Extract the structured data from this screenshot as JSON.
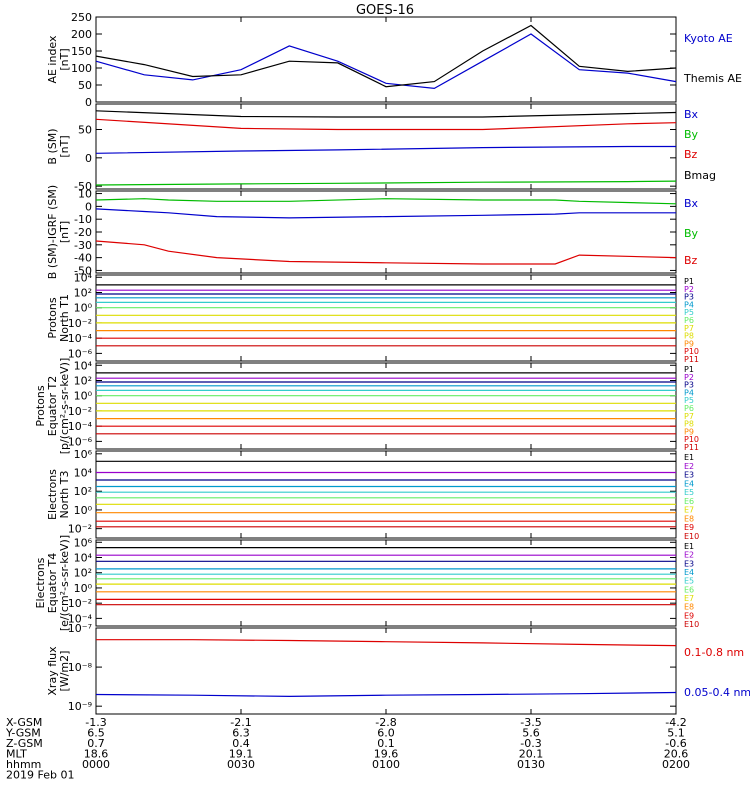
{
  "figure": {
    "title": "GOES-16",
    "footer": {
      "rows": [
        {
          "label": "X-GSM",
          "values": [
            "-1.3",
            "-2.1",
            "-2.8",
            "-3.5",
            "-4.2"
          ]
        },
        {
          "label": "Y-GSM",
          "values": [
            "6.5",
            "6.3",
            "6.0",
            "5.6",
            "5.1"
          ]
        },
        {
          "label": "Z-GSM",
          "values": [
            "0.7",
            "0.4",
            "0.1",
            "-0.3",
            "-0.6"
          ]
        },
        {
          "label": "MLT",
          "values": [
            "18.6",
            "19.1",
            "19.6",
            "20.1",
            "20.6"
          ]
        },
        {
          "label": "hhmm",
          "values": [
            "0000",
            "0030",
            "0100",
            "0130",
            "0200"
          ]
        }
      ],
      "date": "2019 Feb 01"
    }
  },
  "colors": {
    "black": "#000000",
    "blue": "#0000cc",
    "green": "#00bb00",
    "red": "#dd0000",
    "navy": "#000088",
    "purple": "#9900cc",
    "teal": "#0099cc",
    "cyan": "#33cccc",
    "ltgreen": "#66ee66",
    "yellow": "#dddd00",
    "orange": "#ff8800",
    "dkred": "#cc0000"
  },
  "chart_data": [
    {
      "id": "ae",
      "type": "line",
      "ylabel": [
        "AE index",
        "[nT]"
      ],
      "yscale": "linear",
      "ylim": [
        0,
        250
      ],
      "yticks": [
        0,
        50,
        100,
        150,
        200,
        250
      ],
      "ytick_labels": [
        "0",
        "50",
        "100",
        "150",
        "200",
        "250"
      ],
      "x_minutes": [
        0,
        10,
        20,
        30,
        40,
        50,
        60,
        70,
        80,
        90,
        100,
        110,
        120
      ],
      "series": [
        {
          "name": "Kyoto AE",
          "color": "#0000cc",
          "values": [
            120,
            80,
            65,
            95,
            165,
            120,
            55,
            40,
            120,
            200,
            95,
            85,
            60
          ]
        },
        {
          "name": "Themis AE",
          "color": "#000000",
          "values": [
            135,
            110,
            75,
            80,
            120,
            115,
            45,
            60,
            150,
            225,
            105,
            90,
            100
          ]
        }
      ]
    },
    {
      "id": "bsm",
      "type": "line",
      "ylabel": [
        "B (SM)",
        "[nT]"
      ],
      "yscale": "linear",
      "ylim": [
        -55,
        95
      ],
      "yticks": [
        -50,
        0,
        50
      ],
      "ytick_labels": [
        "-50",
        "0",
        "50"
      ],
      "x_minutes": [
        0,
        30,
        50,
        80,
        110,
        120
      ],
      "series": [
        {
          "name": "Bx",
          "color": "#0000cc",
          "values": [
            8,
            12,
            14,
            18,
            20,
            20
          ]
        },
        {
          "name": "By",
          "color": "#00bb00",
          "values": [
            -48,
            -46,
            -45,
            -43,
            -42,
            -41
          ]
        },
        {
          "name": "Bz",
          "color": "#dd0000",
          "values": [
            68,
            52,
            50,
            50,
            60,
            62
          ]
        },
        {
          "name": "Bmag",
          "color": "#000000",
          "values": [
            83,
            73,
            72,
            72,
            78,
            80
          ]
        }
      ]
    },
    {
      "id": "bigrf",
      "type": "line",
      "ylabel": [
        "B (SM)-IGRF (SM)",
        "[nT]"
      ],
      "yscale": "linear",
      "ylim": [
        -52,
        12
      ],
      "yticks": [
        -50,
        -40,
        -30,
        -20,
        -10,
        0,
        10
      ],
      "ytick_labels": [
        "-50",
        "-40",
        "-30",
        "-20",
        "-10",
        "0",
        "10"
      ],
      "x_minutes": [
        0,
        10,
        15,
        25,
        40,
        60,
        80,
        95,
        100,
        120
      ],
      "series": [
        {
          "name": "Bx",
          "color": "#0000cc",
          "values": [
            -2,
            -4,
            -5,
            -8,
            -9,
            -8,
            -7,
            -6,
            -5,
            -5
          ]
        },
        {
          "name": "By",
          "color": "#00bb00",
          "values": [
            5,
            6,
            5,
            4,
            4,
            6,
            5,
            5,
            4,
            2
          ]
        },
        {
          "name": "Bz",
          "color": "#dd0000",
          "values": [
            -27,
            -30,
            -35,
            -40,
            -43,
            -44,
            -45,
            -45,
            -38,
            -40
          ]
        }
      ]
    },
    {
      "id": "p_north",
      "type": "line",
      "ylabel": [
        "Protons",
        "North T1"
      ],
      "yscale": "log",
      "ylim": [
        -7,
        4.3
      ],
      "yticks": [
        -6,
        -4,
        -2,
        0,
        2,
        4
      ],
      "ytick_labels": [
        "10⁻⁶",
        "10⁻⁴",
        "10⁻²",
        "10⁰",
        "10²",
        "10⁴"
      ],
      "x_minutes": [
        0,
        120
      ],
      "series": [
        {
          "name": "P1",
          "color": "#000000",
          "values": [
            3.0,
            3.0
          ]
        },
        {
          "name": "P2",
          "color": "#9900cc",
          "values": [
            2.3,
            2.3
          ]
        },
        {
          "name": "P3",
          "color": "#000088",
          "values": [
            1.8,
            1.8
          ]
        },
        {
          "name": "P4",
          "color": "#0099cc",
          "values": [
            1.3,
            1.3
          ]
        },
        {
          "name": "P5",
          "color": "#33cccc",
          "values": [
            0.7,
            0.7
          ]
        },
        {
          "name": "P6",
          "color": "#66ee66",
          "values": [
            0.0,
            0.0
          ]
        },
        {
          "name": "P7",
          "color": "#dddd00",
          "values": [
            -1.0,
            -1.0
          ]
        },
        {
          "name": "P8",
          "color": "#dddd00",
          "values": [
            -2.0,
            -2.0
          ]
        },
        {
          "name": "P9",
          "color": "#ff8800",
          "values": [
            -3.0,
            -3.0
          ]
        },
        {
          "name": "P10",
          "color": "#dd0000",
          "values": [
            -4.0,
            -4.0
          ]
        },
        {
          "name": "P11",
          "color": "#cc0000",
          "values": [
            -5.0,
            -5.0
          ]
        }
      ]
    },
    {
      "id": "p_equator",
      "type": "line",
      "ylabel": [
        "Protons",
        "Equator T2",
        "[p/(cm²-s-sr-keV)]"
      ],
      "yscale": "log",
      "ylim": [
        -7,
        4.3
      ],
      "yticks": [
        -6,
        -4,
        -2,
        0,
        2,
        4
      ],
      "ytick_labels": [
        "10⁻⁶",
        "10⁻⁴",
        "10⁻²",
        "10⁰",
        "10²",
        "10⁴"
      ],
      "x_minutes": [
        0,
        120
      ],
      "series": [
        {
          "name": "P1",
          "color": "#000000",
          "values": [
            3.0,
            3.0
          ]
        },
        {
          "name": "P2",
          "color": "#9900cc",
          "values": [
            2.3,
            2.3
          ]
        },
        {
          "name": "P3",
          "color": "#000088",
          "values": [
            1.8,
            1.8
          ]
        },
        {
          "name": "P4",
          "color": "#0099cc",
          "values": [
            1.3,
            1.3
          ]
        },
        {
          "name": "P5",
          "color": "#33cccc",
          "values": [
            0.7,
            0.7
          ]
        },
        {
          "name": "P6",
          "color": "#66ee66",
          "values": [
            0.0,
            0.0
          ]
        },
        {
          "name": "P7",
          "color": "#dddd00",
          "values": [
            -1.0,
            -1.0
          ]
        },
        {
          "name": "P8",
          "color": "#dddd00",
          "values": [
            -2.0,
            -2.0
          ]
        },
        {
          "name": "P9",
          "color": "#ff8800",
          "values": [
            -3.0,
            -3.0
          ]
        },
        {
          "name": "P10",
          "color": "#dd0000",
          "values": [
            -4.0,
            -4.0
          ]
        },
        {
          "name": "P11",
          "color": "#cc0000",
          "values": [
            -5.0,
            -5.0
          ]
        }
      ]
    },
    {
      "id": "e_north",
      "type": "line",
      "ylabel": [
        "Electrons",
        "North T3"
      ],
      "yscale": "log",
      "ylim": [
        -3,
        6.3
      ],
      "yticks": [
        -2,
        0,
        2,
        4,
        6
      ],
      "ytick_labels": [
        "10⁻²",
        "10⁰",
        "10²",
        "10⁴",
        "10⁶"
      ],
      "x_minutes": [
        0,
        120
      ],
      "series": [
        {
          "name": "E1",
          "color": "#000000",
          "values": [
            5.2,
            5.2
          ]
        },
        {
          "name": "E2",
          "color": "#9900cc",
          "values": [
            4.0,
            4.0
          ]
        },
        {
          "name": "E3",
          "color": "#000088",
          "values": [
            3.2,
            3.2
          ]
        },
        {
          "name": "E4",
          "color": "#0099cc",
          "values": [
            2.5,
            2.5
          ]
        },
        {
          "name": "E5",
          "color": "#33cccc",
          "values": [
            1.9,
            1.9
          ]
        },
        {
          "name": "E6",
          "color": "#66ee66",
          "values": [
            1.3,
            1.3
          ]
        },
        {
          "name": "E7",
          "color": "#dddd00",
          "values": [
            0.6,
            0.6
          ]
        },
        {
          "name": "E8",
          "color": "#ff8800",
          "values": [
            -0.3,
            -0.3
          ]
        },
        {
          "name": "E9",
          "color": "#dd0000",
          "values": [
            -1.2,
            -1.2
          ]
        },
        {
          "name": "E10",
          "color": "#cc0000",
          "values": [
            -1.8,
            -1.8
          ]
        }
      ]
    },
    {
      "id": "e_equator",
      "type": "line",
      "ylabel": [
        "Electrons",
        "Equator T4",
        "[e/(cm²-s-sr-keV)]"
      ],
      "yscale": "log",
      "ylim": [
        -5,
        6.3
      ],
      "yticks": [
        -4,
        -2,
        0,
        2,
        4,
        6
      ],
      "ytick_labels": [
        "10⁻⁴",
        "10⁻²",
        "10⁰",
        "10²",
        "10⁴",
        "10⁶"
      ],
      "x_minutes": [
        0,
        120
      ],
      "series": [
        {
          "name": "E1",
          "color": "#000000",
          "values": [
            5.3,
            5.3
          ]
        },
        {
          "name": "E2",
          "color": "#9900cc",
          "values": [
            4.3,
            4.3
          ]
        },
        {
          "name": "E3",
          "color": "#000088",
          "values": [
            3.5,
            3.5
          ]
        },
        {
          "name": "E4",
          "color": "#0099cc",
          "values": [
            2.5,
            2.5
          ]
        },
        {
          "name": "E5",
          "color": "#33cccc",
          "values": [
            1.8,
            1.8
          ]
        },
        {
          "name": "E6",
          "color": "#66ee66",
          "values": [
            1.2,
            1.2
          ]
        },
        {
          "name": "E7",
          "color": "#dddd00",
          "values": [
            0.5,
            0.5
          ]
        },
        {
          "name": "E8",
          "color": "#ff8800",
          "values": [
            -0.5,
            -0.5
          ]
        },
        {
          "name": "E9",
          "color": "#dd0000",
          "values": [
            -1.5,
            -1.5
          ]
        },
        {
          "name": "E10",
          "color": "#cc0000",
          "values": [
            -2.2,
            -2.2
          ]
        }
      ]
    },
    {
      "id": "xray",
      "type": "line",
      "ylabel": [
        "Xray flux",
        "[W/m2]"
      ],
      "yscale": "log",
      "ylim": [
        -9.2,
        -7
      ],
      "yticks": [
        -9,
        -8,
        -7
      ],
      "ytick_labels": [
        "10⁻⁹",
        "10⁻⁸",
        "10⁻⁷"
      ],
      "x_minutes": [
        0,
        20,
        40,
        60,
        80,
        100,
        120
      ],
      "series": [
        {
          "name": "0.1-0.8 nm",
          "color": "#dd0000",
          "values": [
            -7.3,
            -7.3,
            -7.32,
            -7.35,
            -7.38,
            -7.42,
            -7.45
          ]
        },
        {
          "name": "0.05-0.4 nm",
          "color": "#0000cc",
          "values": [
            -8.7,
            -8.72,
            -8.75,
            -8.72,
            -8.7,
            -8.68,
            -8.65
          ]
        }
      ]
    }
  ]
}
